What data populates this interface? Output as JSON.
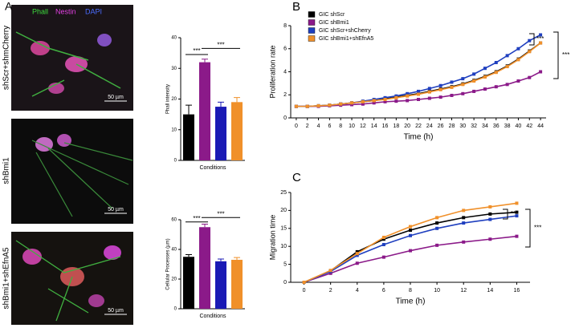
{
  "figure": {
    "panels": [
      "A",
      "B",
      "C"
    ],
    "stains": [
      {
        "label": "Phall",
        "color": "#3ddc3d"
      },
      {
        "label": "Nestin",
        "color": "#e040e0"
      },
      {
        "label": "DAPI",
        "color": "#4a6cff"
      }
    ],
    "images": [
      {
        "label": "shScr+shmCherry",
        "scale_bar": "50 µm"
      },
      {
        "label": "shBmi1",
        "scale_bar": "50 µm"
      },
      {
        "label": "shBmi1+shEfnA5",
        "scale_bar": "50 µm"
      }
    ]
  },
  "chart_data": [
    {
      "type": "bar",
      "categories": [
        null,
        null,
        null,
        null
      ],
      "values": [
        15,
        32,
        17.5,
        19
      ],
      "errors": [
        3,
        1,
        1.5,
        1.5
      ],
      "colors": [
        "#000000",
        "#8b1a89",
        "#1a1ab5",
        "#f0902a"
      ],
      "xlabel": "Conditions",
      "ylabel": "Phall intensity",
      "ylim": [
        0,
        40
      ],
      "yticks": [
        0,
        10,
        20,
        30,
        40
      ],
      "annotations": [
        "***",
        "***"
      ]
    },
    {
      "type": "bar",
      "categories": [
        null,
        null,
        null,
        null
      ],
      "values": [
        35,
        55,
        32,
        33
      ],
      "errors": [
        1.5,
        2,
        1.5,
        1.5
      ],
      "colors": [
        "#000000",
        "#8b1a89",
        "#1a1ab5",
        "#f0902a"
      ],
      "xlabel": "Conditions",
      "ylabel": "Cellular Processes (µm)",
      "ylim": [
        0,
        60
      ],
      "yticks": [
        0,
        20,
        40,
        60
      ],
      "annotations": [
        "***",
        "***"
      ]
    },
    {
      "type": "line",
      "xlabel": "Time (h)",
      "ylabel": "Proliferation rate",
      "legend": "upper left",
      "x": [
        0,
        2,
        4,
        6,
        8,
        10,
        12,
        14,
        16,
        18,
        20,
        22,
        24,
        26,
        28,
        30,
        32,
        34,
        36,
        38,
        40,
        42,
        44
      ],
      "series": [
        {
          "name": "GIC shScr",
          "color": "#000000",
          "values": [
            1,
            1,
            1.05,
            1.1,
            1.2,
            1.3,
            1.4,
            1.5,
            1.65,
            1.8,
            1.95,
            2.1,
            2.3,
            2.5,
            2.7,
            2.95,
            3.25,
            3.6,
            4.0,
            4.5,
            5.1,
            5.8,
            6.5
          ]
        },
        {
          "name": "GIC shBmi1",
          "color": "#8b1a89",
          "values": [
            1,
            1,
            1,
            1.05,
            1.1,
            1.15,
            1.2,
            1.3,
            1.4,
            1.45,
            1.5,
            1.6,
            1.7,
            1.8,
            1.95,
            2.1,
            2.3,
            2.5,
            2.7,
            2.9,
            3.2,
            3.5,
            4.0
          ]
        },
        {
          "name": "GIC shScr+shCherry",
          "color": "#1f3fbf",
          "values": [
            1,
            1,
            1.05,
            1.1,
            1.2,
            1.3,
            1.45,
            1.6,
            1.75,
            1.9,
            2.1,
            2.3,
            2.55,
            2.8,
            3.1,
            3.4,
            3.8,
            4.3,
            4.8,
            5.4,
            6.0,
            6.7,
            7.2
          ]
        },
        {
          "name": "GIC shBmi1+shEfnA5",
          "color": "#f0902a",
          "values": [
            1,
            1,
            1.05,
            1.1,
            1.2,
            1.3,
            1.4,
            1.5,
            1.6,
            1.75,
            1.9,
            2.05,
            2.25,
            2.45,
            2.65,
            2.9,
            3.2,
            3.55,
            3.95,
            4.45,
            5.05,
            5.75,
            6.5
          ]
        }
      ],
      "xlim": [
        -1,
        45
      ],
      "xticks": [
        0,
        2,
        4,
        6,
        8,
        10,
        12,
        14,
        16,
        18,
        20,
        22,
        24,
        26,
        28,
        30,
        32,
        34,
        36,
        38,
        40,
        42,
        44
      ],
      "ylim": [
        0,
        8
      ],
      "yticks": [
        0,
        2,
        4,
        6,
        8
      ],
      "annotations": [
        "***",
        "***"
      ]
    },
    {
      "type": "line",
      "xlabel": "Time (h)",
      "ylabel": "Migration time",
      "x": [
        0,
        2,
        4,
        6,
        8,
        10,
        12,
        14,
        16
      ],
      "series": [
        {
          "color": "#000000",
          "values": [
            0,
            3.2,
            8.5,
            12,
            14.5,
            16.5,
            18,
            19,
            19.5
          ]
        },
        {
          "color": "#8b1a89",
          "values": [
            0,
            2.5,
            5.3,
            7,
            8.8,
            10.3,
            11.2,
            12,
            12.8
          ]
        },
        {
          "color": "#1f3fbf",
          "values": [
            0,
            3,
            7.5,
            10.5,
            13,
            15,
            16.5,
            17.5,
            18.5
          ]
        },
        {
          "color": "#f0902a",
          "values": [
            0,
            3.3,
            8,
            12.5,
            15.5,
            18,
            20,
            21,
            22
          ]
        }
      ],
      "xlim": [
        -1,
        17
      ],
      "xticks": [
        0,
        2,
        4,
        6,
        8,
        10,
        12,
        14,
        16
      ],
      "ylim": [
        0,
        25
      ],
      "yticks": [
        0,
        5,
        10,
        15,
        20,
        25
      ],
      "annotations": [
        "***",
        "***"
      ]
    }
  ]
}
